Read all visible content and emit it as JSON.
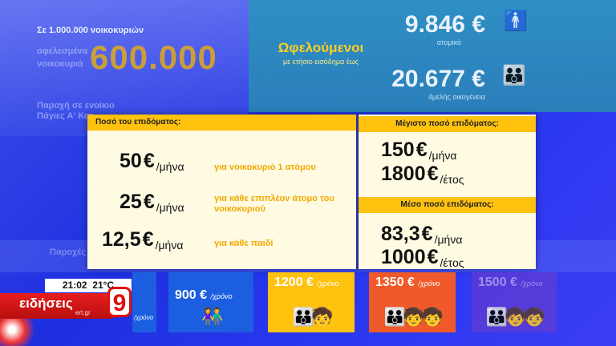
{
  "background": {
    "households_text": "Σε 1.000.000 νοικοκυριών",
    "big_number": "600.000",
    "faded_label_1": "οφελεσμένα",
    "faded_label_2": "νοικοκυριά",
    "faded_label_3": "Παροχή σε ενοίκιο",
    "faded_label_4": "Πάγιες Α' Κατ.",
    "faded_label_5": "Παροχές"
  },
  "beneficiaries": {
    "title": "Ωφελούμενοι",
    "subtitle": "με ετήσιο εισόδημα έως",
    "income_single_value": "9.846 €",
    "income_single_label": "ατομικό",
    "income_family_value": "20.677 €",
    "income_family_label": "4μελής οικογένεια"
  },
  "panel": {
    "left_header": "Ποσό του επιδόματος:",
    "rows": [
      {
        "amount": "50",
        "currency": "€",
        "period": "/μήνα",
        "desc": "για νοικοκυριό 1 ατόμου"
      },
      {
        "amount": "25",
        "currency": "€",
        "period": "/μήνα",
        "desc": "για κάθε επιπλέον άτομο του νοικοκυριού"
      },
      {
        "amount": "12,5",
        "currency": "€",
        "period": "/μήνα",
        "desc": "για κάθε παιδί"
      }
    ],
    "max_header": "Μέγιστο ποσό επιδόματος:",
    "max_monthly": {
      "amount": "150",
      "currency": "€",
      "period": "/μήνα"
    },
    "max_yearly": {
      "amount": "1800",
      "currency": "€",
      "period": "/έτος"
    },
    "avg_header": "Μέσο ποσό επιδόματος:",
    "avg_monthly": {
      "amount": "83,3",
      "currency": "€",
      "period": "/μήνα"
    },
    "avg_yearly": {
      "amount": "1000",
      "currency": "€",
      "period": "/έτος"
    }
  },
  "tiles": [
    {
      "value": "900 €",
      "unit": "/χρόνο",
      "color": "#1b5fe0"
    },
    {
      "value": "1200 €",
      "unit": "/χρόνο",
      "color": "#ffc20e"
    },
    {
      "value": "1350 €",
      "unit": "/χρόνο",
      "color": "#f05a2a"
    },
    {
      "value": "1500 €",
      "unit": "/χρόνο",
      "color": "#5b3bd6"
    }
  ],
  "tile_partial": "/χρόνο",
  "broadcast": {
    "time": "21:02",
    "temp": "21°C",
    "channel_name": "ειδήσεις",
    "channel_site": "ert.gr",
    "channel_number": "9"
  }
}
